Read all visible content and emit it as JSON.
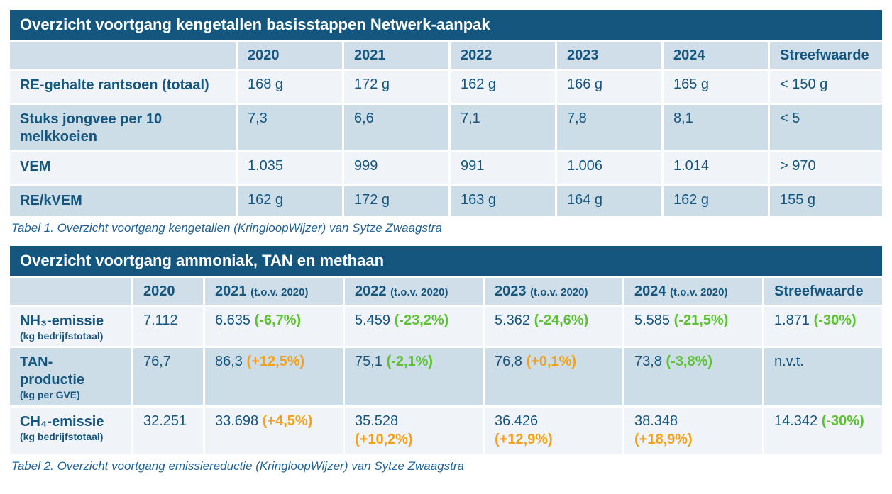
{
  "colors": {
    "header_bar": "#15567F",
    "text_blue": "#15567F",
    "row_light": "#F0F4F8",
    "row_shaded": "#CDDDE7",
    "header_row_bg": "#CFDEE8",
    "green": "#5CC233",
    "orange": "#F5A01B",
    "caption_blue": "#1E6399"
  },
  "table1": {
    "title": "Overzicht voortgang kengetallen basisstappen Netwerk-aanpak",
    "columns": [
      "",
      "2020",
      "2021",
      "2022",
      "2023",
      "2024",
      "Streefwaarde"
    ],
    "rows": [
      {
        "label": "RE-gehalte rantsoen (totaal)",
        "values": [
          "168 g",
          "172 g",
          "162 g",
          "166 g",
          "165 g",
          "< 150 g"
        ]
      },
      {
        "label": "Stuks jongvee per 10 melkkoeien",
        "values": [
          "7,3",
          "6,6",
          "7,1",
          "7,8",
          "8,1",
          "< 5"
        ]
      },
      {
        "label": "VEM",
        "values": [
          "1.035",
          "999",
          "991",
          "1.006",
          "1.014",
          "> 970"
        ]
      },
      {
        "label": "RE/kVEM",
        "values": [
          "162 g",
          "172 g",
          "163 g",
          "164 g",
          "162 g",
          "155 g"
        ]
      }
    ],
    "caption": "Tabel 1. Overzicht voortgang kengetallen (KringloopWijzer) van Sytze Zwaagstra"
  },
  "table2": {
    "title": "Overzicht voortgang ammoniak, TAN en methaan",
    "columns": [
      {
        "year": "",
        "note": ""
      },
      {
        "year": "2020",
        "note": ""
      },
      {
        "year": "2021",
        "note": "(t.o.v. 2020)"
      },
      {
        "year": "2022",
        "note": "(t.o.v. 2020)"
      },
      {
        "year": "2023",
        "note": "(t.o.v. 2020)"
      },
      {
        "year": "2024",
        "note": "(t.o.v. 2020)"
      },
      {
        "year": "Streefwaarde",
        "note": ""
      }
    ],
    "rows": [
      {
        "label": "NH₃-emissie",
        "sublabel": "(kg bedrijfstotaal)",
        "cells": [
          {
            "value": "7.112",
            "pct": "",
            "trend": ""
          },
          {
            "value": "6.635",
            "pct": "(-6,7%)",
            "trend": "green"
          },
          {
            "value": "5.459",
            "pct": "(-23,2%)",
            "trend": "green"
          },
          {
            "value": "5.362",
            "pct": "(-24,6%)",
            "trend": "green"
          },
          {
            "value": "5.585",
            "pct": "(-21,5%)",
            "trend": "green"
          },
          {
            "value": "1.871",
            "pct": "(-30%)",
            "trend": "green"
          }
        ]
      },
      {
        "label": "TAN-productie",
        "sublabel": "(kg per GVE)",
        "cells": [
          {
            "value": "76,7",
            "pct": "",
            "trend": ""
          },
          {
            "value": "86,3",
            "pct": "(+12,5%)",
            "trend": "orange"
          },
          {
            "value": "75,1",
            "pct": "(-2,1%)",
            "trend": "green"
          },
          {
            "value": "76,8",
            "pct": "(+0,1%)",
            "trend": "orange"
          },
          {
            "value": "73,8",
            "pct": "(-3,8%)",
            "trend": "green"
          },
          {
            "value": "n.v.t.",
            "pct": "",
            "trend": ""
          }
        ]
      },
      {
        "label": "CH₄-emissie",
        "sublabel": "(kg bedrijfstotaal)",
        "cells": [
          {
            "value": "32.251",
            "pct": "",
            "trend": ""
          },
          {
            "value": "33.698",
            "pct": "(+4,5%)",
            "trend": "orange"
          },
          {
            "value": "35.528",
            "pct": "(+10,2%)",
            "trend": "orange"
          },
          {
            "value": "36.426",
            "pct": "(+12,9%)",
            "trend": "orange"
          },
          {
            "value": "38.348",
            "pct": "(+18,9%)",
            "trend": "orange"
          },
          {
            "value": "14.342",
            "pct": "(-30%)",
            "trend": "green"
          }
        ]
      }
    ],
    "caption": "Tabel 2. Overzicht voortgang emissiereductie (KringloopWijzer) van Sytze Zwaagstra"
  }
}
